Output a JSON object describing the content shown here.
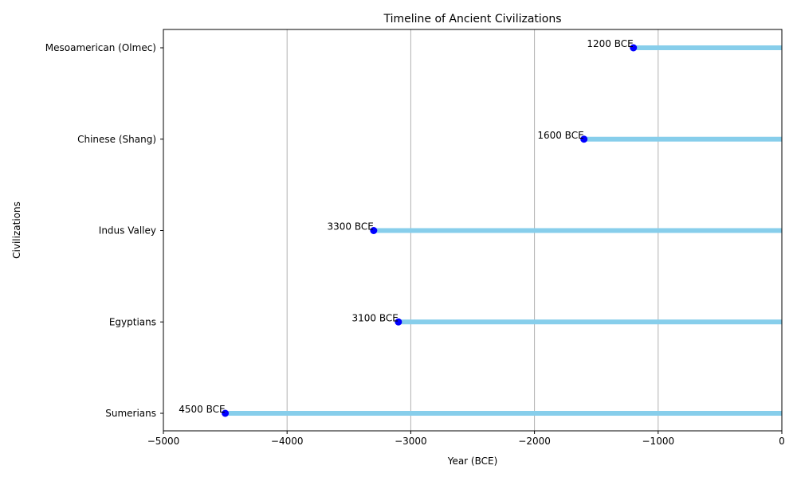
{
  "chart_data": {
    "type": "timeline",
    "title": "Timeline of Ancient Civilizations",
    "xlabel": "Year (BCE)",
    "ylabel": "Civilizations",
    "xlim": [
      -5000,
      0
    ],
    "xticks": [
      -5000,
      -4000,
      -3000,
      -2000,
      -1000,
      0
    ],
    "xtick_labels": [
      "−5000",
      "−4000",
      "−3000",
      "−2000",
      "−1000",
      "0"
    ],
    "grid": "x-major",
    "categories": [
      "Sumerians",
      "Egyptians",
      "Indus Valley",
      "Chinese (Shang)",
      "Mesoamerican (Olmec)"
    ],
    "starts": [
      -4500,
      -3100,
      -3300,
      -1600,
      -1200
    ],
    "ends": [
      0,
      0,
      0,
      0,
      0
    ],
    "start_labels": [
      "4500 BCE",
      "3100 BCE",
      "3300 BCE",
      "1600 BCE",
      "1200 BCE"
    ],
    "colors": {
      "span_line": "#87ceeb",
      "start_marker": "#0000ff",
      "grid": "#b0b0b0",
      "axes": "#000000"
    }
  }
}
